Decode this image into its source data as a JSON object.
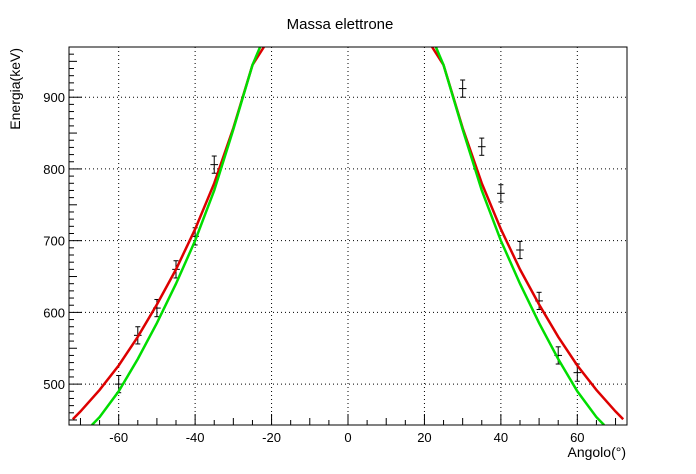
{
  "chart_data": {
    "type": "scatter",
    "title": "Massa elettrone",
    "xlabel": "Angolo(°)",
    "ylabel": "Energia(keV)",
    "xlim": [
      -73,
      73
    ],
    "ylim": [
      443,
      970
    ],
    "xticks": [
      "-60",
      "-40",
      "-20",
      "0",
      "20",
      "40",
      "60"
    ],
    "yticks": [
      "500",
      "600",
      "700",
      "800",
      "900"
    ],
    "grid": true,
    "series": [
      {
        "kind": "points",
        "color": "#000000",
        "xerr": 1,
        "x": [
          -60,
          -55,
          -50,
          -45,
          -40,
          -35,
          30,
          35,
          40,
          45,
          50,
          55,
          60
        ],
        "y": [
          500,
          568,
          606,
          660,
          706,
          806,
          912,
          831,
          766,
          687,
          616,
          540,
          516
        ],
        "yerr": [
          12,
          12,
          12,
          12,
          12,
          12,
          12,
          12,
          12,
          12,
          12,
          12,
          12
        ]
      },
      {
        "kind": "curve",
        "color": "#dd0000",
        "x": [
          -72,
          -70,
          -65,
          -60,
          -55,
          -50,
          -45,
          -40,
          -35,
          -30,
          -25,
          -22,
          22,
          25,
          30,
          35,
          40,
          45,
          50,
          55,
          60,
          65,
          70,
          72
        ],
        "y": [
          451,
          462,
          492,
          526,
          566,
          611,
          660,
          716,
          780,
          857,
          945,
          970,
          970,
          945,
          857,
          780,
          716,
          660,
          611,
          566,
          526,
          492,
          462,
          451
        ]
      },
      {
        "kind": "curve",
        "color": "#00dd00",
        "x": [
          -67,
          -65,
          -60,
          -55,
          -50,
          -45,
          -40,
          -35,
          -30,
          -25,
          -23,
          23,
          25,
          30,
          35,
          40,
          45,
          50,
          55,
          60,
          65,
          67
        ],
        "y": [
          443,
          454,
          490,
          535,
          585,
          640,
          700,
          770,
          855,
          945,
          970,
          970,
          945,
          855,
          770,
          700,
          640,
          585,
          535,
          490,
          454,
          443
        ]
      }
    ]
  }
}
